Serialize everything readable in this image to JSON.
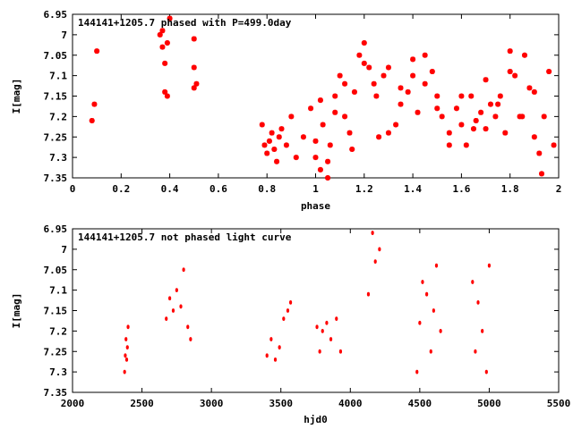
{
  "chart_data": [
    {
      "type": "scatter",
      "title": "144141+1205.7 phased with P=499.0day",
      "xlabel": "phase",
      "ylabel": "I[mag]",
      "xlim": [
        0,
        2
      ],
      "ylim": [
        6.95,
        7.35
      ],
      "y_inverted": true,
      "x_ticks": [
        0,
        0.2,
        0.4,
        0.6,
        0.8,
        1,
        1.2,
        1.4,
        1.6,
        1.8,
        2
      ],
      "x_tick_labels": [
        "0",
        "0.2",
        "0.4",
        "0.6",
        "0.8",
        "1",
        "1.2",
        "1.4",
        "1.6",
        "1.8",
        "2"
      ],
      "y_ticks": [
        6.95,
        7,
        7.05,
        7.1,
        7.15,
        7.2,
        7.25,
        7.3,
        7.35
      ],
      "y_tick_labels": [
        "6.95",
        "7",
        "7.05",
        "7.1",
        "7.15",
        "7.2",
        "7.25",
        "7.3",
        "7.35"
      ],
      "grid": false,
      "point_color": "#ff0000",
      "series": [
        {
          "x": [
            0.08,
            0.09,
            0.1,
            0.36,
            0.37,
            0.37,
            0.38,
            0.38,
            0.39,
            0.39,
            0.4,
            0.5,
            0.5,
            0.51,
            0.5,
            0.78,
            0.79,
            0.8,
            0.81,
            0.82,
            0.83,
            0.84,
            0.85,
            0.86,
            0.88,
            0.9,
            0.92,
            0.95,
            0.98,
            1.0,
            1.02,
            1.03,
            1.05,
            1.06,
            1.08,
            1.1,
            1.12,
            1.14,
            1.16,
            1.18,
            1.2,
            1.22,
            1.24,
            1.26,
            1.28,
            1.3,
            1.33,
            1.35,
            1.38,
            1.4,
            1.42,
            1.45,
            1.48,
            1.5,
            1.52,
            1.55,
            1.58,
            1.6,
            1.62,
            1.64,
            1.66,
            1.68,
            1.7,
            1.72,
            1.74,
            1.76,
            1.78,
            1.8,
            1.82,
            1.84,
            1.86,
            1.88,
            1.9,
            1.92,
            1.94,
            1.96,
            1.98,
            1.0,
            1.02,
            1.05,
            1.08,
            1.12,
            1.15,
            1.2,
            1.25,
            1.3,
            1.35,
            1.4,
            1.45,
            1.5,
            1.55,
            1.6,
            1.65,
            1.7,
            1.75,
            1.8,
            1.85,
            1.9,
            1.93
          ],
          "y": [
            7.21,
            7.17,
            7.04,
            7.0,
            6.99,
            7.03,
            7.07,
            7.14,
            7.15,
            7.02,
            6.96,
            7.01,
            7.08,
            7.12,
            7.13,
            7.22,
            7.27,
            7.29,
            7.26,
            7.24,
            7.28,
            7.31,
            7.25,
            7.23,
            7.27,
            7.2,
            7.3,
            7.25,
            7.18,
            7.3,
            7.33,
            7.22,
            7.35,
            7.27,
            7.15,
            7.1,
            7.2,
            7.24,
            7.14,
            7.05,
            7.02,
            7.08,
            7.12,
            7.25,
            7.1,
            7.08,
            7.22,
            7.17,
            7.14,
            7.06,
            7.19,
            7.12,
            7.09,
            7.15,
            7.2,
            7.24,
            7.18,
            7.22,
            7.27,
            7.15,
            7.21,
            7.19,
            7.23,
            7.17,
            7.2,
            7.15,
            7.24,
            7.04,
            7.1,
            7.2,
            7.05,
            7.13,
            7.25,
            7.29,
            7.2,
            7.09,
            7.27,
            7.26,
            7.16,
            7.31,
            7.19,
            7.12,
            7.28,
            7.07,
            7.15,
            7.24,
            7.13,
            7.1,
            7.05,
            7.18,
            7.27,
            7.15,
            7.23,
            7.11,
            7.17,
            7.09,
            7.2,
            7.14,
            7.34
          ]
        }
      ]
    },
    {
      "type": "scatter",
      "title": "144141+1205.7 not phased light curve",
      "xlabel": "hjd0",
      "ylabel": "I[mag]",
      "xlim": [
        2000,
        5500
      ],
      "ylim": [
        6.95,
        7.35
      ],
      "y_inverted": true,
      "x_ticks": [
        2000,
        2500,
        3000,
        3500,
        4000,
        4500,
        5000,
        5500
      ],
      "x_tick_labels": [
        "2000",
        "2500",
        "3000",
        "3500",
        "4000",
        "4500",
        "5000",
        "5500"
      ],
      "y_ticks": [
        6.95,
        7,
        7.05,
        7.1,
        7.15,
        7.2,
        7.25,
        7.3,
        7.35
      ],
      "y_tick_labels": [
        "6.95",
        "7",
        "7.05",
        "7.1",
        "7.15",
        "7.2",
        "7.25",
        "7.3",
        "7.35"
      ],
      "grid": false,
      "point_color": "#ff0000",
      "series": [
        {
          "x": [
            2375,
            2380,
            2385,
            2390,
            2395,
            2400,
            2675,
            2700,
            2725,
            2750,
            2780,
            2800,
            2830,
            2850,
            3400,
            3430,
            3460,
            3490,
            3520,
            3550,
            3570,
            3760,
            3780,
            3800,
            3830,
            3860,
            3900,
            3930,
            4130,
            4160,
            4180,
            4210,
            4480,
            4500,
            4520,
            4550,
            4580,
            4600,
            4620,
            4650,
            4880,
            4900,
            4920,
            4950,
            4980,
            5000
          ],
          "y": [
            7.3,
            7.26,
            7.22,
            7.27,
            7.24,
            7.19,
            7.17,
            7.12,
            7.15,
            7.1,
            7.14,
            7.05,
            7.19,
            7.22,
            7.26,
            7.22,
            7.27,
            7.24,
            7.17,
            7.15,
            7.13,
            7.19,
            7.25,
            7.2,
            7.18,
            7.22,
            7.17,
            7.25,
            7.11,
            6.96,
            7.03,
            7.0,
            7.3,
            7.18,
            7.08,
            7.11,
            7.25,
            7.15,
            7.04,
            7.2,
            7.08,
            7.25,
            7.13,
            7.2,
            7.3,
            7.04
          ]
        }
      ]
    }
  ]
}
